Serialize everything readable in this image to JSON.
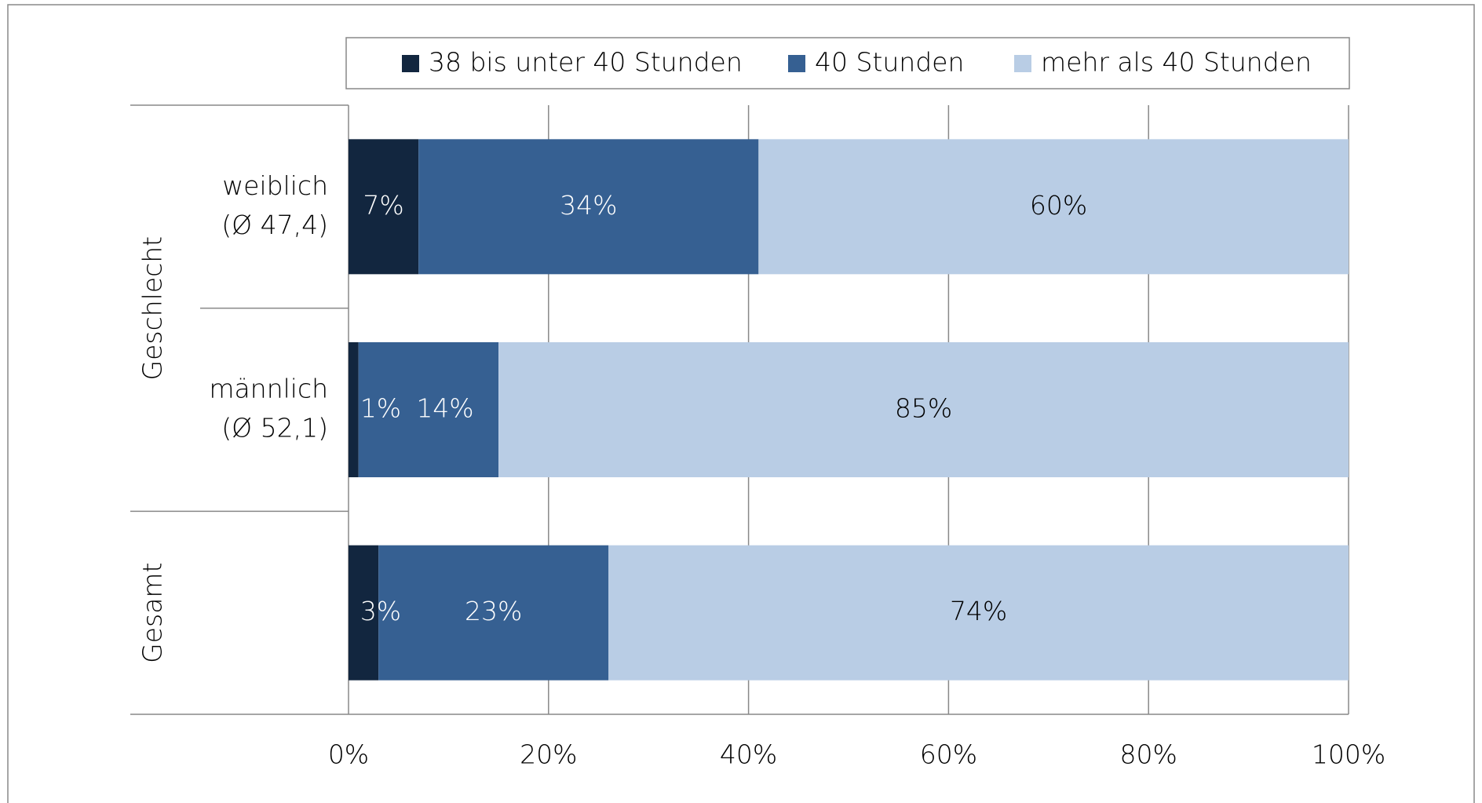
{
  "chart_data": {
    "type": "stacked-barh",
    "categories": [
      [
        "weiblich",
        "(Ø 47,4)"
      ],
      [
        "männlich",
        "(Ø 52,1)"
      ],
      null
    ],
    "groups": [
      "Geschlecht",
      "Gesamt"
    ],
    "series": [
      {
        "name": "38 bis unter 40 Stunden",
        "color": "#12263f",
        "values": [
          7,
          1,
          3
        ],
        "value_labels": [
          "7%",
          "1%",
          "3%"
        ]
      },
      {
        "name": "40 Stunden",
        "color": "#366092",
        "values": [
          34,
          14,
          23
        ],
        "value_labels": [
          "34%",
          "14%",
          "23%"
        ]
      },
      {
        "name": "mehr als 40 Stunden",
        "color": "#b9cde5",
        "values": [
          60,
          85,
          74
        ],
        "value_labels": [
          "60%",
          "85%",
          "74%"
        ]
      }
    ],
    "xlim": [
      0,
      100
    ],
    "xticks": [
      {
        "value": 0,
        "label": "0%"
      },
      {
        "value": 20,
        "label": "20%"
      },
      {
        "value": 40,
        "label": "40%"
      },
      {
        "value": 60,
        "label": "60%"
      },
      {
        "value": 80,
        "label": "80%"
      },
      {
        "value": 100,
        "label": "100%"
      }
    ],
    "grid": true,
    "legend": "top"
  }
}
